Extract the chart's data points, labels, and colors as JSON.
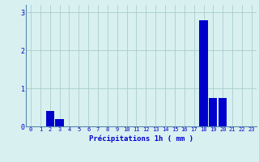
{
  "hours": [
    0,
    1,
    2,
    3,
    4,
    5,
    6,
    7,
    8,
    9,
    10,
    11,
    12,
    13,
    14,
    15,
    16,
    17,
    18,
    19,
    20,
    21,
    22,
    23
  ],
  "values": [
    0,
    0,
    0.4,
    0.2,
    0,
    0,
    0,
    0,
    0,
    0,
    0,
    0,
    0,
    0,
    0,
    0,
    0,
    0,
    2.8,
    0.75,
    0.75,
    0,
    0,
    0
  ],
  "bar_color": "#0000cc",
  "background_color": "#d8f0f0",
  "grid_color": "#aacece",
  "xlabel": "Précipitations 1h ( mm )",
  "xlabel_color": "#0000cc",
  "tick_color": "#0000cc",
  "axis_color": "#5588aa",
  "ylim": [
    0,
    3.2
  ],
  "yticks": [
    0,
    1,
    2,
    3
  ],
  "bar_width": 0.85,
  "tick_fontsize": 5.0,
  "xlabel_fontsize": 6.5
}
